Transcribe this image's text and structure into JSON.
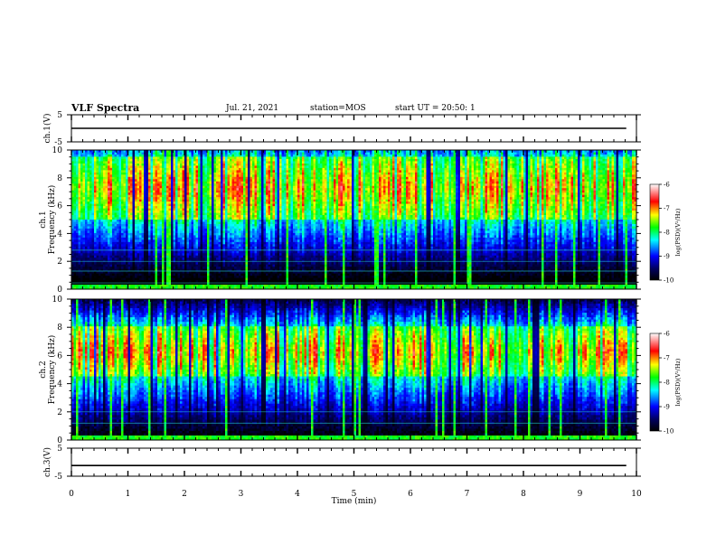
{
  "header": {
    "title": "VLF Spectra",
    "date": "Jul. 21, 2021",
    "station": "station=MOS",
    "start_ut": "start UT =  20:50: 1"
  },
  "chart_data": [
    {
      "type": "line",
      "ylabel": "ch.1(V)",
      "ylim": [
        -5,
        5
      ],
      "yticks": [
        "5",
        "-5"
      ],
      "series": [
        {
          "x": [
            0,
            9.82
          ],
          "values": [
            0,
            0
          ]
        }
      ]
    },
    {
      "type": "heatmap",
      "ylabel": "ch.1\nFrequency (kHz)",
      "ylim": [
        0,
        10
      ],
      "yticks": [
        "0",
        "2",
        "4",
        "6",
        "8",
        "10"
      ],
      "colorbar": {
        "label": "log(PSD)(V²/Hz)",
        "range": [
          -10,
          -6
        ],
        "ticks": [
          "-6",
          "-7",
          "-8",
          "-9",
          "-10"
        ]
      },
      "intense_band_khz": [
        5,
        9.5
      ],
      "lines_khz": [
        0.45,
        1.3,
        2.0,
        2.8
      ]
    },
    {
      "type": "heatmap",
      "ylabel": "ch.2\nFrequency (kHz)",
      "ylim": [
        0,
        10
      ],
      "yticks": [
        "0",
        "2",
        "4",
        "6",
        "8",
        "10"
      ],
      "colorbar": {
        "label": "log(PSD)(V²/Hz)",
        "range": [
          -10,
          -6
        ],
        "ticks": [
          "-6",
          "-7",
          "-8",
          "-9",
          "-10"
        ]
      },
      "intense_band_khz": [
        4.5,
        8
      ],
      "lines_khz": [
        1.2,
        2.0
      ]
    },
    {
      "type": "line",
      "ylabel": "ch.3(V)",
      "ylim": [
        -5,
        5
      ],
      "yticks": [
        "5",
        "-5"
      ],
      "series": [
        {
          "x": [
            0,
            9.82
          ],
          "values": [
            -1.2,
            -1.2
          ]
        }
      ]
    }
  ],
  "xaxis": {
    "label": "Time (min)",
    "range": [
      0,
      10
    ],
    "ticks": [
      "0",
      "1",
      "2",
      "3",
      "4",
      "5",
      "6",
      "7",
      "8",
      "9",
      "10"
    ]
  }
}
